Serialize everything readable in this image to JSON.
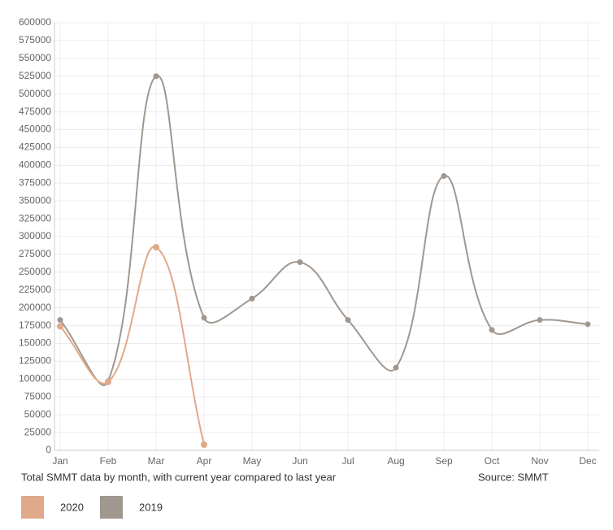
{
  "chart_data": {
    "type": "line",
    "categories": [
      "Jan",
      "Feb",
      "Mar",
      "Apr",
      "May",
      "Jun",
      "Jul",
      "Aug",
      "Sep",
      "Oct",
      "Nov",
      "Dec"
    ],
    "series": [
      {
        "name": "2020",
        "color": "#dfa98a",
        "values": [
          174000,
          96000,
          285000,
          8000,
          null,
          null,
          null,
          null,
          null,
          null,
          null,
          null
        ]
      },
      {
        "name": "2019",
        "color": "#a0978f",
        "values": [
          183000,
          97000,
          525000,
          186000,
          213000,
          264000,
          183000,
          116000,
          385000,
          169000,
          183000,
          177000
        ]
      }
    ],
    "ylim": [
      0,
      600000
    ],
    "yticks": [
      0,
      25000,
      50000,
      75000,
      100000,
      125000,
      150000,
      175000,
      200000,
      225000,
      250000,
      275000,
      300000,
      325000,
      350000,
      375000,
      400000,
      425000,
      450000,
      475000,
      500000,
      525000,
      550000,
      575000,
      600000
    ],
    "grid": true,
    "caption": "Total SMMT data by month, with current year compared to last year",
    "source": "Source: SMMT"
  }
}
